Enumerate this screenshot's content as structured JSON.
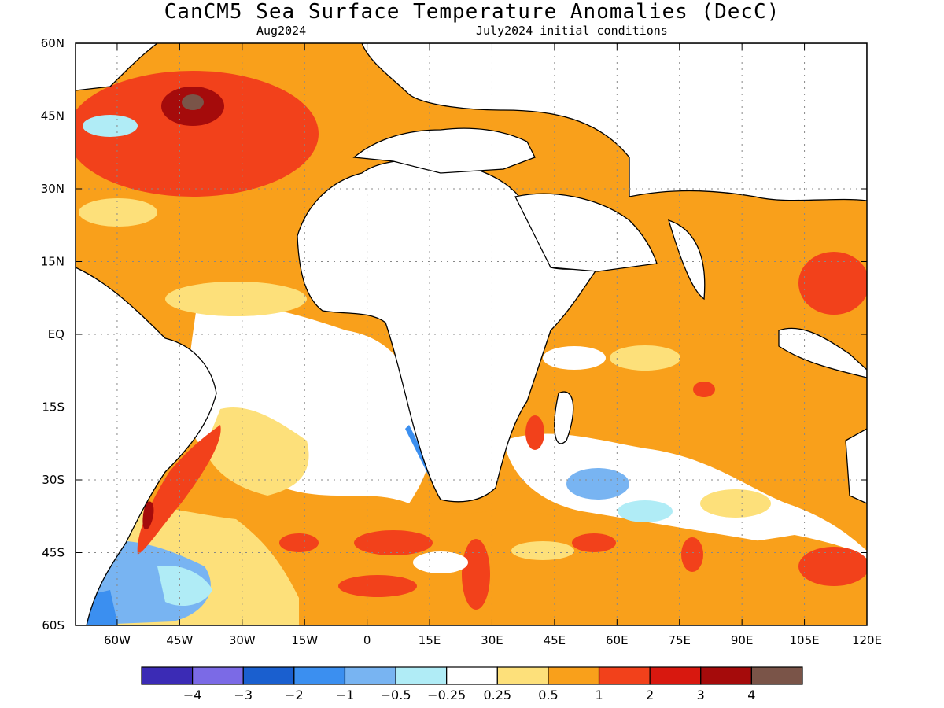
{
  "map": {
    "title": "CanCM5 Sea Surface Temperature Anomalies (DecC)",
    "subtitle_left": "Aug2024",
    "subtitle_right": "July2024 initial conditions",
    "region": {
      "lon_range": [
        -70,
        120
      ],
      "lat_range": [
        -60,
        60
      ]
    },
    "lon_ticks": [
      {
        "value": -60,
        "label": "60W"
      },
      {
        "value": -45,
        "label": "45W"
      },
      {
        "value": -30,
        "label": "30W"
      },
      {
        "value": -15,
        "label": "15W"
      },
      {
        "value": 0,
        "label": "0"
      },
      {
        "value": 15,
        "label": "15E"
      },
      {
        "value": 30,
        "label": "30E"
      },
      {
        "value": 45,
        "label": "45E"
      },
      {
        "value": 60,
        "label": "60E"
      },
      {
        "value": 75,
        "label": "75E"
      },
      {
        "value": 90,
        "label": "90E"
      },
      {
        "value": 105,
        "label": "105E"
      },
      {
        "value": 120,
        "label": "120E"
      }
    ],
    "lat_ticks": [
      {
        "value": 60,
        "label": "60N"
      },
      {
        "value": 45,
        "label": "45N"
      },
      {
        "value": 30,
        "label": "30N"
      },
      {
        "value": 15,
        "label": "15N"
      },
      {
        "value": 0,
        "label": "EQ"
      },
      {
        "value": -15,
        "label": "15S"
      },
      {
        "value": -30,
        "label": "30S"
      },
      {
        "value": -45,
        "label": "45S"
      },
      {
        "value": -60,
        "label": "60S"
      }
    ],
    "grid": "dotted",
    "land_color": "#ffffff",
    "coast_color": "#000000"
  },
  "colorbar": {
    "colors": [
      "#3b2bb5",
      "#7b6ae6",
      "#1a5fcf",
      "#3b8ff0",
      "#78b4f2",
      "#b0ecf6",
      "#ffffff",
      "#fde07a",
      "#f9a01b",
      "#f2411b",
      "#d8180f",
      "#a50b0b",
      "#7a5448"
    ],
    "labels": [
      "−4",
      "−3",
      "−2",
      "−1",
      "−0.5",
      "−0.25",
      "0.25",
      "0.5",
      "1",
      "2",
      "3",
      "4"
    ]
  }
}
